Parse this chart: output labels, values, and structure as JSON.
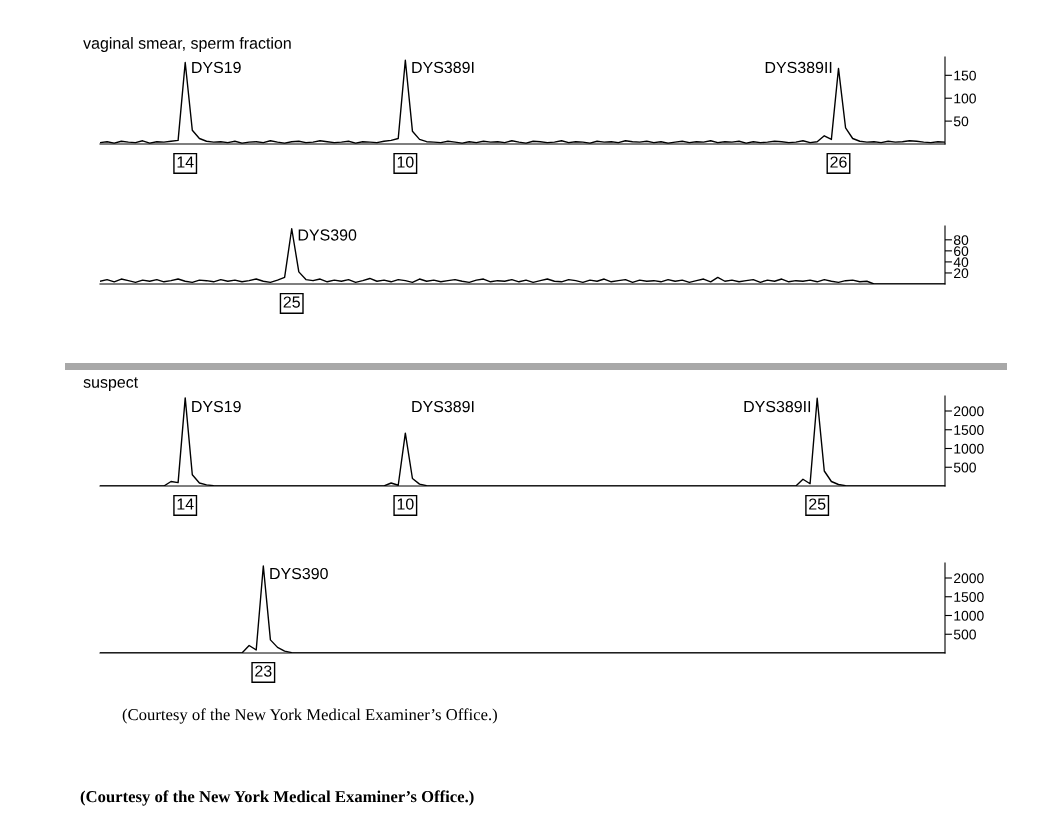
{
  "chart_data": [
    {
      "type": "line",
      "title": "vaginal smear, sperm fraction",
      "tick_labels": "y",
      "ylim": [
        0,
        190
      ],
      "yticks": [
        50,
        100,
        150
      ],
      "categories": [
        null,
        null,
        null,
        null,
        null,
        null,
        null,
        null,
        null,
        null,
        null,
        null,
        null,
        null,
        null,
        null,
        null,
        null,
        null,
        null,
        null,
        null,
        null,
        null,
        null,
        null,
        null,
        null,
        null,
        null,
        null,
        null,
        null,
        null,
        null,
        null,
        null,
        null,
        null,
        null,
        null,
        null,
        null,
        null,
        null,
        null,
        null,
        null,
        null,
        null,
        null,
        null,
        null,
        null,
        null,
        null,
        null,
        null,
        null,
        null,
        null,
        null,
        null,
        null,
        null,
        null,
        null,
        null,
        null,
        null,
        null,
        null,
        null,
        null,
        null,
        null,
        null,
        null,
        null,
        null,
        null,
        null,
        null,
        null,
        null,
        null,
        null,
        null,
        null,
        null,
        null,
        null,
        null,
        null,
        null,
        null,
        null,
        null,
        null,
        null,
        null,
        null,
        null,
        null,
        null,
        null,
        null,
        null,
        null,
        null,
        null,
        null,
        null,
        null,
        null,
        null,
        null,
        null,
        null,
        null
      ],
      "series": [
        {
          "color": "#000000",
          "values": [
            3,
            5,
            2,
            6,
            4,
            3,
            7,
            2,
            5,
            4,
            6,
            8,
            178,
            30,
            12,
            6,
            4,
            5,
            3,
            6,
            2,
            4,
            5,
            3,
            7,
            4,
            2,
            5,
            6,
            3,
            4,
            7,
            5,
            3,
            4,
            6,
            2,
            5,
            4,
            3,
            6,
            8,
            12,
            183,
            28,
            10,
            5,
            4,
            3,
            6,
            4,
            2,
            5,
            3,
            6,
            4,
            5,
            3,
            7,
            4,
            2,
            6,
            5,
            3,
            4,
            7,
            3,
            5,
            4,
            2,
            6,
            4,
            5,
            3,
            7,
            5,
            4,
            6,
            3,
            5,
            2,
            4,
            6,
            3,
            5,
            4,
            7,
            3,
            5,
            4,
            6,
            2,
            5,
            3,
            4,
            6,
            5,
            3,
            4,
            7,
            3,
            5,
            18,
            10,
            165,
            35,
            12,
            6,
            4,
            5,
            3,
            6,
            4,
            5,
            7,
            6,
            4,
            3,
            5,
            4
          ]
        }
      ],
      "annotations": [
        "DYS19",
        "14",
        "DYS389I",
        "10",
        "DYS389II",
        "26"
      ]
    },
    {
      "type": "line",
      "tick_labels": "y",
      "ylim": [
        0,
        105
      ],
      "yticks": [
        20,
        40,
        60,
        80
      ],
      "categories": [
        null,
        null,
        null,
        null,
        null,
        null,
        null,
        null,
        null,
        null,
        null,
        null,
        null,
        null,
        null,
        null,
        null,
        null,
        null,
        null,
        null,
        null,
        null,
        null,
        null,
        null,
        null,
        null,
        null,
        null,
        null,
        null,
        null,
        null,
        null,
        null,
        null,
        null,
        null,
        null,
        null,
        null,
        null,
        null,
        null,
        null,
        null,
        null,
        null,
        null,
        null,
        null,
        null,
        null,
        null,
        null,
        null,
        null,
        null,
        null,
        null,
        null,
        null,
        null,
        null,
        null,
        null,
        null,
        null,
        null,
        null,
        null,
        null,
        null,
        null,
        null,
        null,
        null,
        null,
        null,
        null,
        null,
        null,
        null,
        null,
        null,
        null,
        null,
        null,
        null,
        null,
        null,
        null,
        null,
        null,
        null,
        null,
        null,
        null,
        null,
        null,
        null,
        null,
        null,
        null,
        null,
        null,
        null,
        null,
        null,
        null,
        null,
        null,
        null,
        null,
        null,
        null,
        null,
        null,
        null
      ],
      "series": [
        {
          "color": "#000000",
          "values": [
            5,
            8,
            4,
            9,
            6,
            3,
            7,
            5,
            8,
            4,
            6,
            9,
            5,
            3,
            7,
            6,
            4,
            8,
            5,
            7,
            4,
            6,
            9,
            5,
            3,
            7,
            12,
            100,
            22,
            8,
            6,
            9,
            4,
            7,
            5,
            8,
            3,
            6,
            10,
            5,
            7,
            4,
            8,
            6,
            3,
            9,
            5,
            7,
            4,
            6,
            8,
            5,
            3,
            7,
            9,
            4,
            6,
            5,
            8,
            4,
            7,
            3,
            6,
            9,
            5,
            4,
            8,
            6,
            3,
            7,
            5,
            9,
            4,
            6,
            8,
            3,
            7,
            5,
            6,
            4,
            8,
            5,
            7,
            3,
            6,
            9,
            4,
            12,
            5,
            7,
            4,
            6,
            8,
            3,
            7,
            5,
            9,
            4,
            6,
            5,
            7,
            4,
            8,
            5,
            3,
            6,
            7,
            4,
            5,
            0,
            0,
            0,
            0,
            0,
            0,
            0,
            0,
            0,
            0,
            0
          ]
        }
      ],
      "annotations": [
        "DYS390",
        "25"
      ]
    },
    {
      "type": "line",
      "title": "suspect",
      "tick_labels": "y",
      "ylim": [
        0,
        2400
      ],
      "yticks": [
        500,
        1000,
        1500,
        2000
      ],
      "categories": [
        null,
        null,
        null,
        null,
        null,
        null,
        null,
        null,
        null,
        null,
        null,
        null,
        null,
        null,
        null,
        null,
        null,
        null,
        null,
        null,
        null,
        null,
        null,
        null,
        null,
        null,
        null,
        null,
        null,
        null,
        null,
        null,
        null,
        null,
        null,
        null,
        null,
        null,
        null,
        null,
        null,
        null,
        null,
        null,
        null,
        null,
        null,
        null,
        null,
        null,
        null,
        null,
        null,
        null,
        null,
        null,
        null,
        null,
        null,
        null,
        null,
        null,
        null,
        null,
        null,
        null,
        null,
        null,
        null,
        null,
        null,
        null,
        null,
        null,
        null,
        null,
        null,
        null,
        null,
        null,
        null,
        null,
        null,
        null,
        null,
        null,
        null,
        null,
        null,
        null,
        null,
        null,
        null,
        null,
        null,
        null,
        null,
        null,
        null,
        null,
        null,
        null,
        null,
        null,
        null,
        null,
        null,
        null,
        null,
        null,
        null,
        null,
        null,
        null,
        null,
        null,
        null,
        null,
        null,
        null
      ],
      "series": [
        {
          "color": "#000000",
          "values": [
            0,
            0,
            0,
            0,
            0,
            0,
            0,
            0,
            0,
            0,
            120,
            90,
            2350,
            300,
            80,
            30,
            10,
            0,
            0,
            0,
            0,
            0,
            0,
            0,
            0,
            0,
            0,
            0,
            0,
            0,
            0,
            0,
            0,
            0,
            0,
            0,
            0,
            0,
            0,
            0,
            0,
            80,
            20,
            1410,
            200,
            50,
            10,
            0,
            0,
            0,
            0,
            0,
            0,
            0,
            0,
            0,
            0,
            0,
            0,
            0,
            0,
            0,
            0,
            0,
            0,
            0,
            0,
            0,
            0,
            0,
            0,
            0,
            0,
            0,
            0,
            0,
            0,
            0,
            0,
            0,
            0,
            0,
            0,
            0,
            0,
            0,
            0,
            0,
            0,
            0,
            0,
            0,
            0,
            0,
            0,
            0,
            0,
            0,
            0,
            180,
            60,
            2340,
            400,
            120,
            40,
            10,
            0,
            0,
            0,
            0,
            0,
            0,
            0,
            0,
            0,
            0,
            0,
            0,
            0,
            0
          ]
        }
      ],
      "annotations": [
        "DYS19",
        "14",
        "DYS389I",
        "10",
        "DYS389II",
        "25"
      ]
    },
    {
      "type": "line",
      "tick_labels": "y",
      "ylim": [
        0,
        2400
      ],
      "yticks": [
        500,
        1000,
        1500,
        2000
      ],
      "categories": [
        null,
        null,
        null,
        null,
        null,
        null,
        null,
        null,
        null,
        null,
        null,
        null,
        null,
        null,
        null,
        null,
        null,
        null,
        null,
        null,
        null,
        null,
        null,
        null,
        null,
        null,
        null,
        null,
        null,
        null,
        null,
        null,
        null,
        null,
        null,
        null,
        null,
        null,
        null,
        null,
        null,
        null,
        null,
        null,
        null,
        null,
        null,
        null,
        null,
        null,
        null,
        null,
        null,
        null,
        null,
        null,
        null,
        null,
        null,
        null,
        null,
        null,
        null,
        null,
        null,
        null,
        null,
        null,
        null,
        null,
        null,
        null,
        null,
        null,
        null,
        null,
        null,
        null,
        null,
        null,
        null,
        null,
        null,
        null,
        null,
        null,
        null,
        null,
        null,
        null,
        null,
        null,
        null,
        null,
        null,
        null,
        null,
        null,
        null,
        null,
        null,
        null,
        null,
        null,
        null,
        null,
        null,
        null,
        null,
        null,
        null,
        null,
        null,
        null,
        null,
        null,
        null,
        null,
        null,
        null
      ],
      "series": [
        {
          "color": "#000000",
          "values": [
            0,
            0,
            0,
            0,
            0,
            0,
            0,
            0,
            0,
            0,
            0,
            0,
            0,
            0,
            0,
            0,
            0,
            0,
            0,
            0,
            0,
            200,
            80,
            2320,
            350,
            150,
            50,
            10,
            0,
            0,
            0,
            0,
            0,
            0,
            0,
            0,
            0,
            0,
            0,
            0,
            0,
            0,
            0,
            0,
            0,
            0,
            0,
            0,
            0,
            0,
            0,
            0,
            0,
            0,
            0,
            0,
            0,
            0,
            0,
            0,
            0,
            0,
            0,
            0,
            0,
            0,
            0,
            0,
            0,
            0,
            0,
            0,
            0,
            0,
            0,
            0,
            0,
            0,
            0,
            0,
            0,
            0,
            0,
            0,
            0,
            0,
            0,
            0,
            0,
            0,
            0,
            0,
            0,
            0,
            0,
            0,
            0,
            0,
            0,
            0,
            0,
            0,
            0,
            0,
            0,
            0,
            0,
            0,
            0,
            0,
            0,
            0,
            0,
            0,
            0,
            0,
            0,
            0,
            0,
            0
          ]
        }
      ],
      "annotations": [
        "DYS390",
        "23",
        "(Courtesy of the New York Medical Examiner’s Office.)",
        "(Courtesy of the New York Medical Examiner’s Office.)"
      ]
    }
  ]
}
